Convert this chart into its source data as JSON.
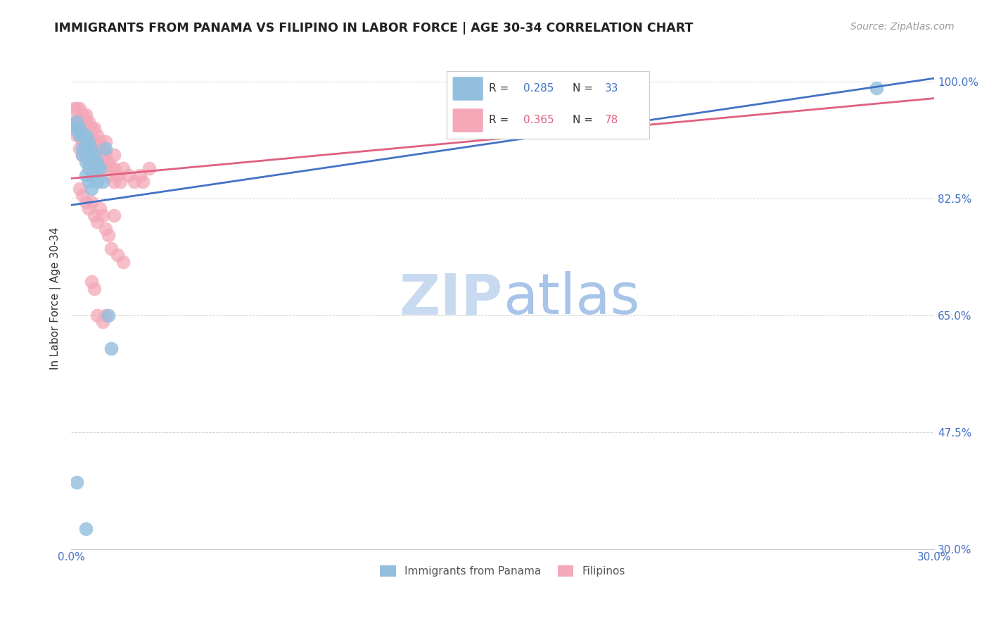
{
  "title": "IMMIGRANTS FROM PANAMA VS FILIPINO IN LABOR FORCE | AGE 30-34 CORRELATION CHART",
  "source": "Source: ZipAtlas.com",
  "ylabel": "In Labor Force | Age 30-34",
  "xlim": [
    0.0,
    0.3
  ],
  "ylim": [
    0.3,
    1.05
  ],
  "xtick_vals": [
    0.0,
    0.05,
    0.1,
    0.15,
    0.2,
    0.25,
    0.3
  ],
  "xtick_labels": [
    "0.0%",
    "",
    "",
    "",
    "",
    "",
    "30.0%"
  ],
  "ytick_vals": [
    0.3,
    0.475,
    0.65,
    0.825,
    1.0
  ],
  "ytick_labels": [
    "30.0%",
    "47.5%",
    "65.0%",
    "82.5%",
    "100.0%"
  ],
  "panama_color": "#92bfde",
  "filipinos_color": "#f4a8b8",
  "panama_line_color": "#4472c4",
  "filipinos_line_color": "#e06080",
  "pan_line_x0": 0.0,
  "pan_line_y0": 0.815,
  "pan_line_x1": 0.3,
  "pan_line_y1": 1.005,
  "fil_line_x0": 0.0,
  "fil_line_y0": 0.855,
  "fil_line_x1": 0.3,
  "fil_line_y1": 0.975,
  "watermark_zip_color": "#c8daf0",
  "watermark_atlas_color": "#a8c4e8",
  "panama_scatter_x": [
    0.001,
    0.002,
    0.002,
    0.003,
    0.003,
    0.004,
    0.004,
    0.004,
    0.005,
    0.005,
    0.005,
    0.005,
    0.006,
    0.006,
    0.006,
    0.006,
    0.007,
    0.007,
    0.007,
    0.007,
    0.008,
    0.008,
    0.009,
    0.009,
    0.009,
    0.01,
    0.011,
    0.012,
    0.013,
    0.014,
    0.28,
    0.002,
    0.005
  ],
  "panama_scatter_y": [
    0.93,
    0.94,
    0.93,
    0.93,
    0.92,
    0.92,
    0.9,
    0.89,
    0.92,
    0.9,
    0.88,
    0.86,
    0.91,
    0.89,
    0.87,
    0.85,
    0.9,
    0.88,
    0.86,
    0.84,
    0.89,
    0.87,
    0.88,
    0.87,
    0.85,
    0.87,
    0.85,
    0.9,
    0.65,
    0.6,
    0.99,
    0.4,
    0.33
  ],
  "filipinos_scatter_x": [
    0.001,
    0.001,
    0.002,
    0.002,
    0.002,
    0.003,
    0.003,
    0.003,
    0.003,
    0.004,
    0.004,
    0.004,
    0.004,
    0.005,
    0.005,
    0.005,
    0.005,
    0.006,
    0.006,
    0.006,
    0.006,
    0.007,
    0.007,
    0.007,
    0.008,
    0.008,
    0.008,
    0.009,
    0.009,
    0.009,
    0.01,
    0.01,
    0.011,
    0.011,
    0.012,
    0.012,
    0.013,
    0.014,
    0.015,
    0.015,
    0.016,
    0.017,
    0.018,
    0.02,
    0.022,
    0.024,
    0.025,
    0.027,
    0.003,
    0.004,
    0.005,
    0.006,
    0.007,
    0.008,
    0.009,
    0.01,
    0.011,
    0.012,
    0.013,
    0.015,
    0.004,
    0.005,
    0.006,
    0.007,
    0.008,
    0.009,
    0.01,
    0.011,
    0.013,
    0.015,
    0.014,
    0.016,
    0.018,
    0.012,
    0.009,
    0.011,
    0.007,
    0.008
  ],
  "filipinos_scatter_y": [
    0.96,
    0.94,
    0.96,
    0.94,
    0.92,
    0.96,
    0.94,
    0.92,
    0.9,
    0.95,
    0.93,
    0.91,
    0.89,
    0.95,
    0.93,
    0.91,
    0.89,
    0.94,
    0.92,
    0.9,
    0.88,
    0.93,
    0.91,
    0.89,
    0.93,
    0.91,
    0.89,
    0.92,
    0.9,
    0.88,
    0.91,
    0.89,
    0.9,
    0.88,
    0.91,
    0.89,
    0.88,
    0.87,
    0.89,
    0.87,
    0.86,
    0.85,
    0.87,
    0.86,
    0.85,
    0.86,
    0.85,
    0.87,
    0.84,
    0.83,
    0.82,
    0.81,
    0.82,
    0.8,
    0.79,
    0.81,
    0.8,
    0.78,
    0.77,
    0.8,
    0.95,
    0.94,
    0.93,
    0.92,
    0.91,
    0.9,
    0.89,
    0.88,
    0.86,
    0.85,
    0.75,
    0.74,
    0.73,
    0.65,
    0.65,
    0.64,
    0.7,
    0.69
  ]
}
